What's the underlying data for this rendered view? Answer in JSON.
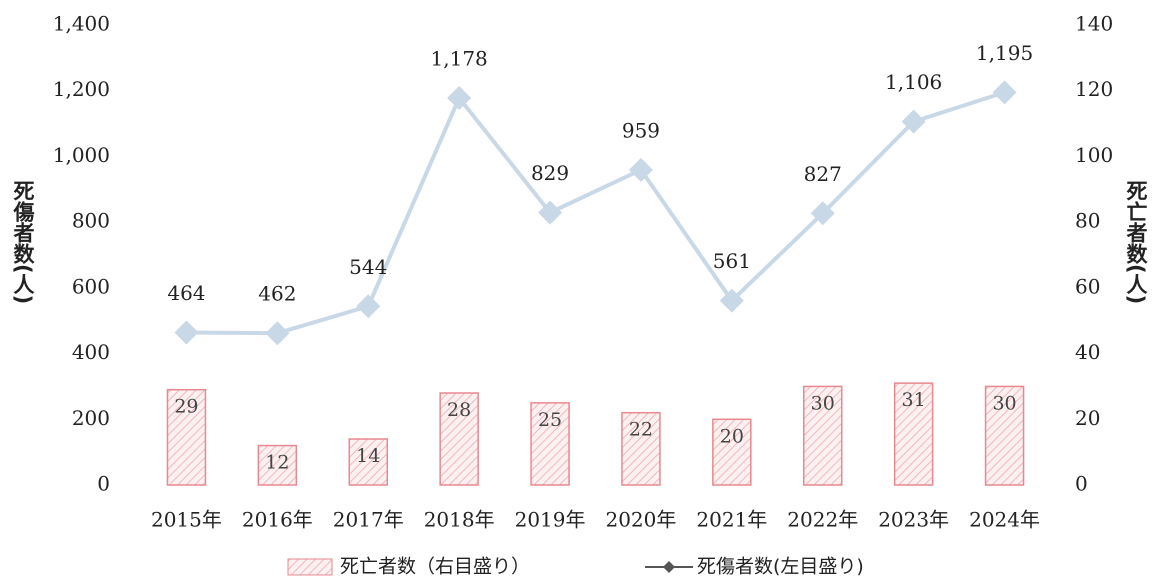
{
  "chart_data": {
    "type": "combo",
    "y_label": "死傷者数(人)",
    "y2_label": "死亡者数(人)",
    "categories": [
      "2015年",
      "2016年",
      "2017年",
      "2018年",
      "2019年",
      "2020年",
      "2021年",
      "2022年",
      "2023年",
      "2024年"
    ],
    "series": [
      {
        "name": "死亡者数（右目盛り）",
        "type": "bar",
        "axis": "y2",
        "color": "#f4c4c8",
        "values": [
          29,
          12,
          14,
          28,
          25,
          22,
          20,
          30,
          31,
          30
        ]
      },
      {
        "name": "死傷者数(左目盛り)",
        "type": "line",
        "color": "#c9d8e6",
        "values": [
          464,
          462,
          544,
          1178,
          829,
          959,
          561,
          827,
          1106,
          1195
        ],
        "value_labels": [
          "464",
          "462",
          "544",
          "1,178",
          "829",
          "959",
          "561",
          "827",
          "1,106",
          "1,195"
        ]
      }
    ],
    "ylim": [
      0,
      1400
    ],
    "yticks": [
      0,
      200,
      400,
      600,
      800,
      {
        "value": 1000,
        "label": "1,000"
      },
      {
        "value": 1200,
        "label": "1,200"
      },
      {
        "value": 1400,
        "label": "1,400"
      }
    ],
    "y2lim": [
      0,
      140
    ],
    "y2ticks": [
      0,
      20,
      40,
      60,
      80,
      100,
      120,
      140
    ],
    "legend": "bottom"
  }
}
